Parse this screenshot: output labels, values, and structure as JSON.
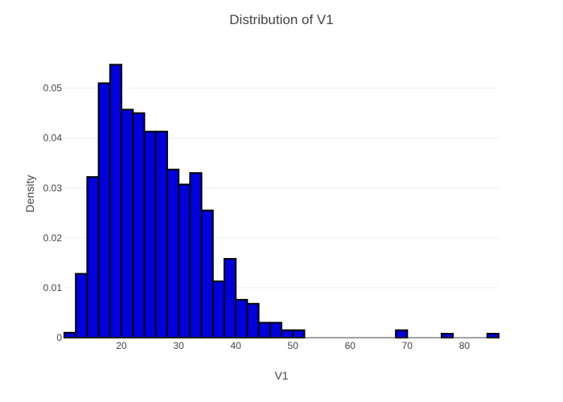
{
  "chart_data": {
    "type": "bar",
    "title": "Distribution of V1",
    "xlabel": "V1",
    "ylabel": "Density",
    "xlim": [
      10,
      86
    ],
    "ylim": [
      0,
      0.058
    ],
    "x_ticks": [
      20,
      30,
      40,
      50,
      60,
      70,
      80
    ],
    "y_ticks": [
      0,
      0.01,
      0.02,
      0.03,
      0.04,
      0.05
    ],
    "y_tick_labels": [
      "0",
      "0.01",
      "0.02",
      "0.03",
      "0.04",
      "0.05"
    ],
    "bin_width": 2,
    "bins": [
      {
        "x0": 10,
        "x1": 12,
        "value": 0.001
      },
      {
        "x0": 12,
        "x1": 14,
        "value": 0.0128
      },
      {
        "x0": 14,
        "x1": 16,
        "value": 0.0322
      },
      {
        "x0": 16,
        "x1": 18,
        "value": 0.051
      },
      {
        "x0": 18,
        "x1": 20,
        "value": 0.0547
      },
      {
        "x0": 20,
        "x1": 22,
        "value": 0.0457
      },
      {
        "x0": 22,
        "x1": 24,
        "value": 0.045
      },
      {
        "x0": 24,
        "x1": 26,
        "value": 0.0413
      },
      {
        "x0": 26,
        "x1": 28,
        "value": 0.0413
      },
      {
        "x0": 28,
        "x1": 30,
        "value": 0.0337
      },
      {
        "x0": 30,
        "x1": 32,
        "value": 0.0307
      },
      {
        "x0": 32,
        "x1": 34,
        "value": 0.033
      },
      {
        "x0": 34,
        "x1": 36,
        "value": 0.0255
      },
      {
        "x0": 36,
        "x1": 38,
        "value": 0.0113
      },
      {
        "x0": 38,
        "x1": 40,
        "value": 0.0158
      },
      {
        "x0": 40,
        "x1": 42,
        "value": 0.0076
      },
      {
        "x0": 42,
        "x1": 44,
        "value": 0.0068
      },
      {
        "x0": 44,
        "x1": 46,
        "value": 0.003
      },
      {
        "x0": 46,
        "x1": 48,
        "value": 0.003
      },
      {
        "x0": 48,
        "x1": 50,
        "value": 0.0015
      },
      {
        "x0": 50,
        "x1": 52,
        "value": 0.0015
      },
      {
        "x0": 68,
        "x1": 70,
        "value": 0.0015
      },
      {
        "x0": 76,
        "x1": 78,
        "value": 0.0008
      },
      {
        "x0": 84,
        "x1": 86,
        "value": 0.0008
      }
    ],
    "grid": true,
    "colors": {
      "bar_fill": "#0000dd",
      "bar_stroke": "#000000",
      "grid": "#eeeeee",
      "text": "#444444"
    }
  }
}
